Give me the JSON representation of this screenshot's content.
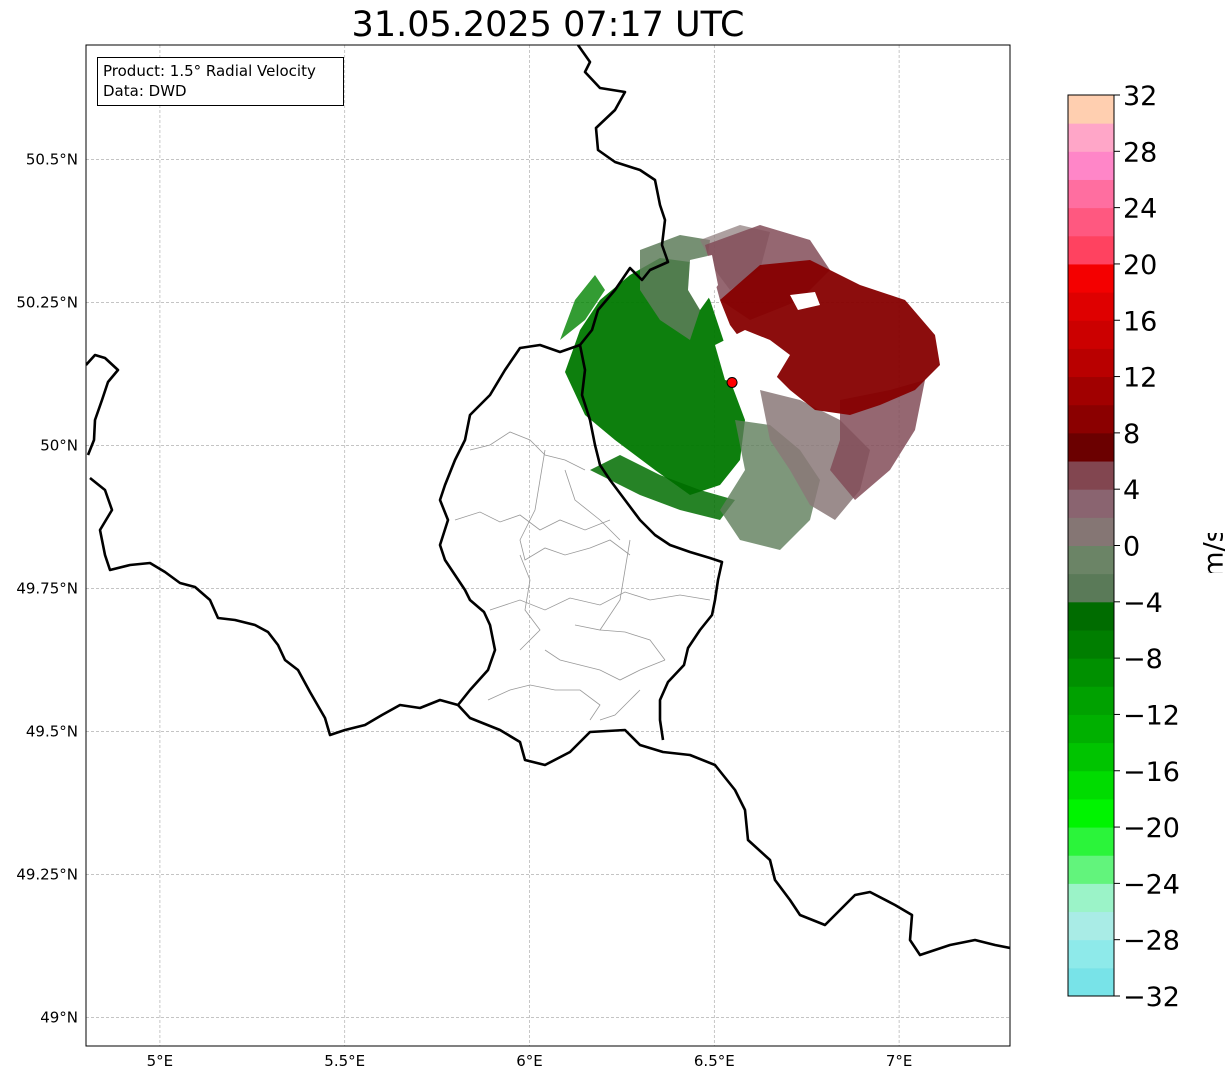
{
  "title": "31.05.2025 07:17 UTC",
  "info": {
    "product": "Product: 1.5° Radial Velocity",
    "data_source": "Data: DWD"
  },
  "map": {
    "lon_range": [
      4.8,
      7.3
    ],
    "lat_range": [
      48.95,
      50.7
    ],
    "lon_ticks": [
      {
        "value": 5.0,
        "label": "5°E"
      },
      {
        "value": 5.5,
        "label": "5.5°E"
      },
      {
        "value": 6.0,
        "label": "6°E"
      },
      {
        "value": 6.5,
        "label": "6.5°E"
      },
      {
        "value": 7.0,
        "label": "7°E"
      }
    ],
    "lat_ticks": [
      {
        "value": 49.0,
        "label": "49°N"
      },
      {
        "value": 49.25,
        "label": "49.25°N"
      },
      {
        "value": 49.5,
        "label": "49.5°N"
      },
      {
        "value": 49.75,
        "label": "49.75°N"
      },
      {
        "value": 50.0,
        "label": "50°N"
      },
      {
        "value": 50.25,
        "label": "50.25°N"
      },
      {
        "value": 50.5,
        "label": "50.5°N"
      }
    ],
    "grid": true,
    "radar_site": {
      "lon": 6.548,
      "lat": 50.11,
      "color": "#ff0000"
    },
    "borders_color": "#000000",
    "regions_color": "#999999"
  },
  "colorbar": {
    "label": "m/s",
    "min": -32,
    "max": 32,
    "tick_labels": [
      {
        "value": 32,
        "label": "32"
      },
      {
        "value": 28,
        "label": "28"
      },
      {
        "value": 24,
        "label": "24"
      },
      {
        "value": 20,
        "label": "20"
      },
      {
        "value": 16,
        "label": "16"
      },
      {
        "value": 12,
        "label": "12"
      },
      {
        "value": 8,
        "label": "8"
      },
      {
        "value": 4,
        "label": "4"
      },
      {
        "value": 0,
        "label": "0"
      },
      {
        "value": -4,
        "label": "−4"
      },
      {
        "value": -8,
        "label": "−8"
      },
      {
        "value": -12,
        "label": "−12"
      },
      {
        "value": -16,
        "label": "−16"
      },
      {
        "value": -20,
        "label": "−20"
      },
      {
        "value": -24,
        "label": "−24"
      },
      {
        "value": -28,
        "label": "−28"
      },
      {
        "value": -32,
        "label": "−32"
      }
    ],
    "colors_low_to_high": [
      "#78e3e8",
      "#8eeaea",
      "#a9ece6",
      "#9bf3c8",
      "#62f47c",
      "#2bf43a",
      "#00f400",
      "#00dc00",
      "#00c400",
      "#00b000",
      "#00a100",
      "#009000",
      "#007e00",
      "#006c00",
      "#5a7a58",
      "#6b8466",
      "#857674",
      "#8a6470",
      "#824650",
      "#6b0000",
      "#8b0000",
      "#a10000",
      "#b90000",
      "#cc0000",
      "#df0000",
      "#f40000",
      "#ff4260",
      "#ff5880",
      "#ff6ea0",
      "#ff86c8",
      "#ffa6c8",
      "#ffcfb0"
    ]
  },
  "echo_colors": {
    "inbound_strong": "#007800",
    "inbound_weak": "#5e7d5a",
    "near_zero": "#8a7878",
    "outbound_weak": "#834c58",
    "outbound_strong": "#860000"
  }
}
